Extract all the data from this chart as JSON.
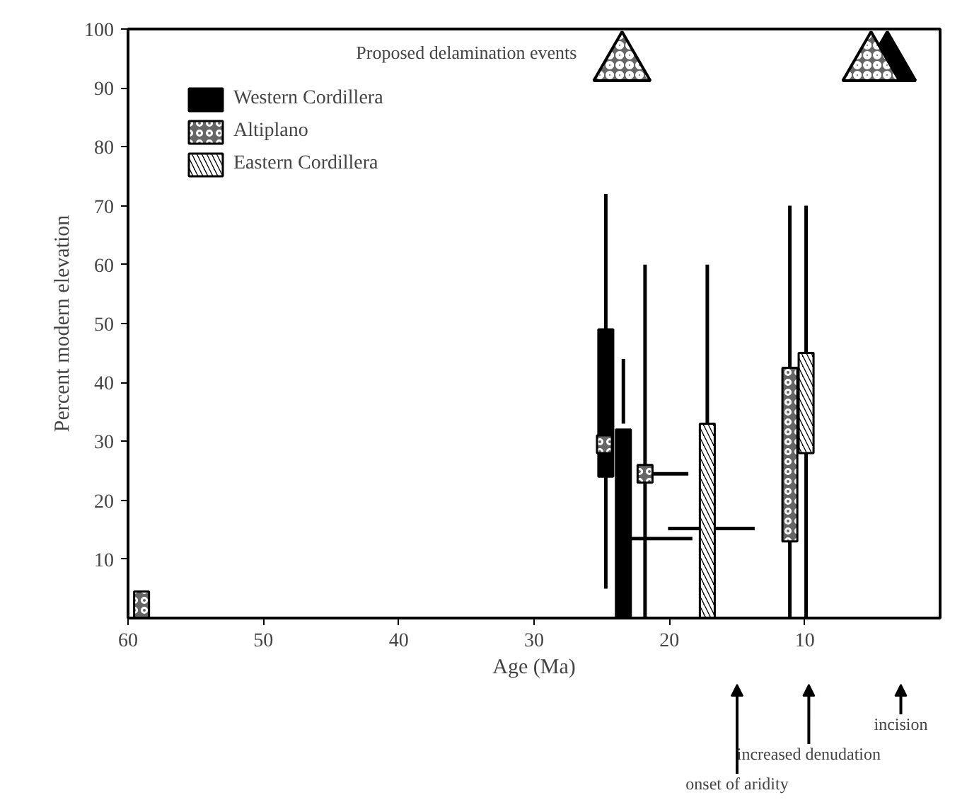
{
  "chart_data": {
    "type": "bar",
    "xlabel": "Age (Ma)",
    "ylabel": "Percent modern elevation",
    "xlim": [
      60,
      0
    ],
    "ylim": [
      0,
      100
    ],
    "xticks": [
      60,
      50,
      40,
      30,
      20,
      10
    ],
    "yticks": [
      10,
      20,
      30,
      40,
      50,
      60,
      70,
      80,
      90,
      100
    ],
    "legend": "top left",
    "grid": false,
    "annotations": [
      "Proposed delamination events",
      "incision",
      "increased denudation",
      "onset of aridity"
    ],
    "series": [
      {
        "name": "Western Cordillera",
        "color": "#000000",
        "x": [
          24.7,
          23.4
        ],
        "base": [
          24,
          0
        ],
        "values": [
          25,
          32
        ]
      },
      {
        "name": "Altiplano",
        "color": "#666666",
        "x": [
          59,
          24.8,
          21.8,
          11.1
        ],
        "base": [
          0,
          28,
          23,
          13
        ],
        "values": [
          4.5,
          3,
          3,
          29.5
        ]
      },
      {
        "name": "Eastern Cordillera",
        "color": "#000000",
        "x": [
          17.2,
          9.9
        ],
        "base": [
          0,
          28
        ],
        "values": [
          33,
          17
        ]
      },
      {
        "type": "scatter",
        "marker": "triangle",
        "color": "#000000",
        "x": [
          3.9
        ],
        "values": [
          94
        ]
      },
      {
        "type": "scatter",
        "marker": "triangle",
        "color": "#666666",
        "x": [
          23.5,
          5.1
        ],
        "values": [
          94,
          94
        ]
      },
      {
        "type": "line",
        "color": "#000000",
        "x": [
          24.7,
          24.7
        ],
        "values": [
          5,
          72
        ]
      },
      {
        "type": "line",
        "color": "#000000",
        "x": [
          23.4,
          23.4
        ],
        "values": [
          33,
          44
        ]
      },
      {
        "type": "line",
        "color": "#000000",
        "x": [
          22.8,
          18.3
        ],
        "values": [
          13.5,
          13.5
        ]
      },
      {
        "type": "line",
        "color": "#000000",
        "x": [
          21.8,
          21.8
        ],
        "values": [
          0,
          60
        ]
      },
      {
        "type": "line",
        "color": "#000000",
        "x": [
          21.2,
          18.6
        ],
        "values": [
          24.5,
          24.5
        ]
      },
      {
        "type": "line",
        "color": "#000000",
        "x": [
          11.1,
          11.1
        ],
        "values": [
          0,
          70
        ]
      },
      {
        "type": "line",
        "color": "#000000",
        "x": [
          17.2,
          17.2
        ],
        "values": [
          33,
          60
        ]
      },
      {
        "type": "line",
        "color": "#000000",
        "x": [
          20.1,
          13.7
        ],
        "values": [
          15.2,
          15.2
        ]
      },
      {
        "type": "line",
        "color": "#000000",
        "x": [
          9.9,
          9.9
        ],
        "values": [
          0,
          70
        ]
      }
    ]
  }
}
